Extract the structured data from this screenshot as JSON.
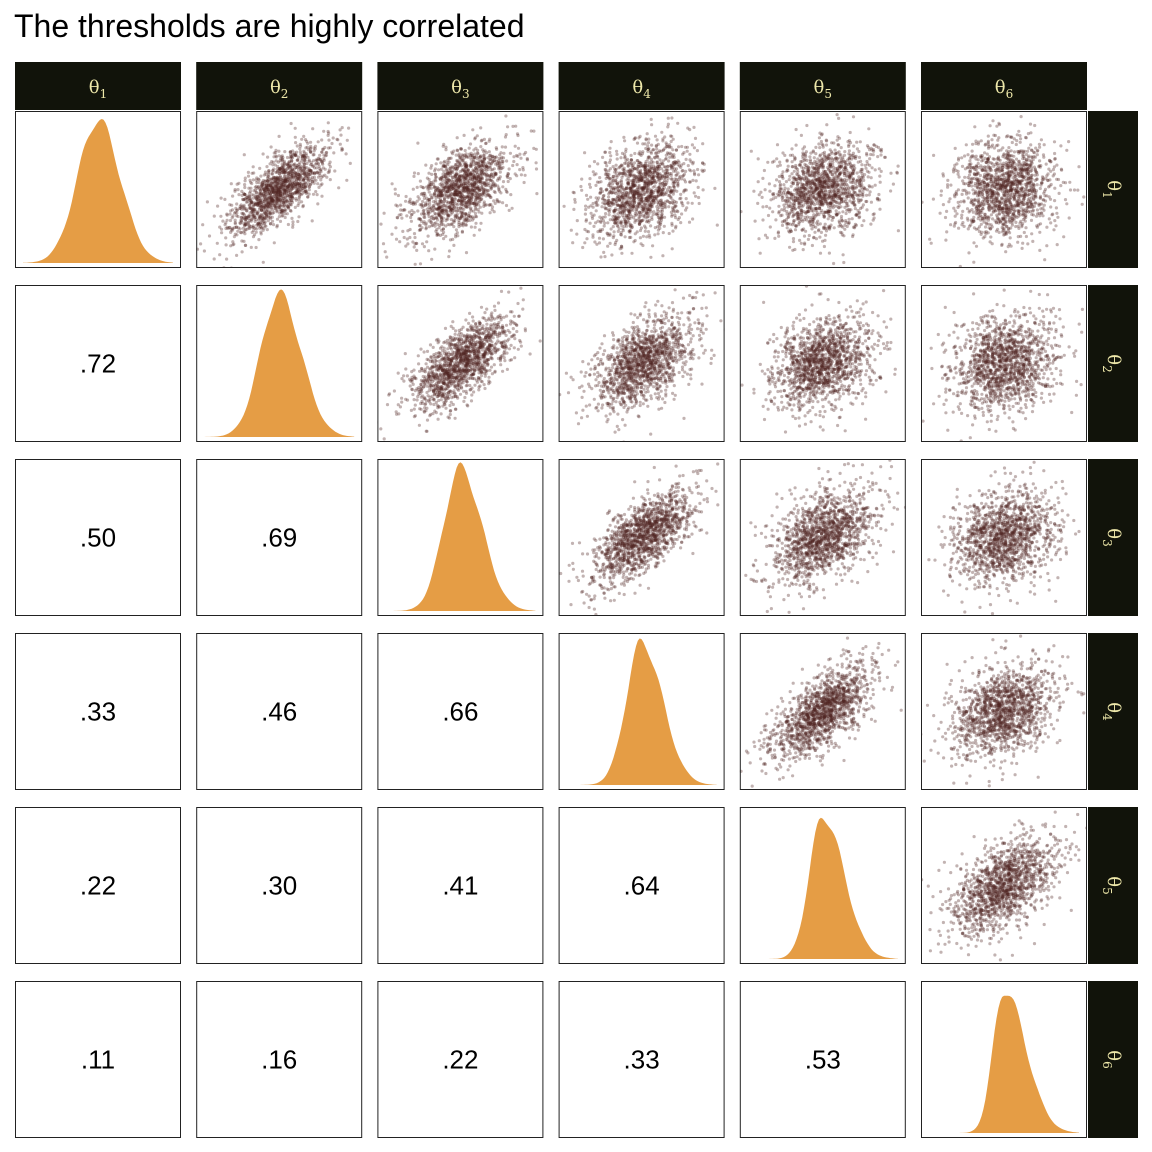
{
  "chart_data": {
    "type": "scatter",
    "title": "The thresholds are highly correlated",
    "variables": [
      {
        "symbol": "θ",
        "subscript": "1"
      },
      {
        "symbol": "θ",
        "subscript": "2"
      },
      {
        "symbol": "θ",
        "subscript": "3"
      },
      {
        "symbol": "θ",
        "subscript": "4"
      },
      {
        "symbol": "θ",
        "subscript": "5"
      },
      {
        "symbol": "θ",
        "subscript": "6"
      }
    ],
    "correlations": [
      {
        "row": 2,
        "col": 1,
        "label": ".72",
        "value": 0.72
      },
      {
        "row": 3,
        "col": 1,
        "label": ".50",
        "value": 0.5
      },
      {
        "row": 3,
        "col": 2,
        "label": ".69",
        "value": 0.69
      },
      {
        "row": 4,
        "col": 1,
        "label": ".33",
        "value": 0.33
      },
      {
        "row": 4,
        "col": 2,
        "label": ".46",
        "value": 0.46
      },
      {
        "row": 4,
        "col": 3,
        "label": ".66",
        "value": 0.66
      },
      {
        "row": 5,
        "col": 1,
        "label": ".22",
        "value": 0.22
      },
      {
        "row": 5,
        "col": 2,
        "label": ".30",
        "value": 0.3
      },
      {
        "row": 5,
        "col": 3,
        "label": ".41",
        "value": 0.41
      },
      {
        "row": 5,
        "col": 4,
        "label": ".64",
        "value": 0.64
      },
      {
        "row": 6,
        "col": 1,
        "label": ".11",
        "value": 0.11
      },
      {
        "row": 6,
        "col": 2,
        "label": ".16",
        "value": 0.16
      },
      {
        "row": 6,
        "col": 3,
        "label": ".22",
        "value": 0.22
      },
      {
        "row": 6,
        "col": 4,
        "label": ".33",
        "value": 0.33
      },
      {
        "row": 6,
        "col": 5,
        "label": ".53",
        "value": 0.53
      }
    ],
    "diagonal": "density",
    "upper": "scatter",
    "lower": "correlation-text",
    "grid": false,
    "colors": {
      "density_fill": "#e59d45",
      "points": "#4f2421",
      "strip_bg": "#11130a",
      "strip_text": "#eee8aa",
      "panel_border": "#222222"
    }
  }
}
